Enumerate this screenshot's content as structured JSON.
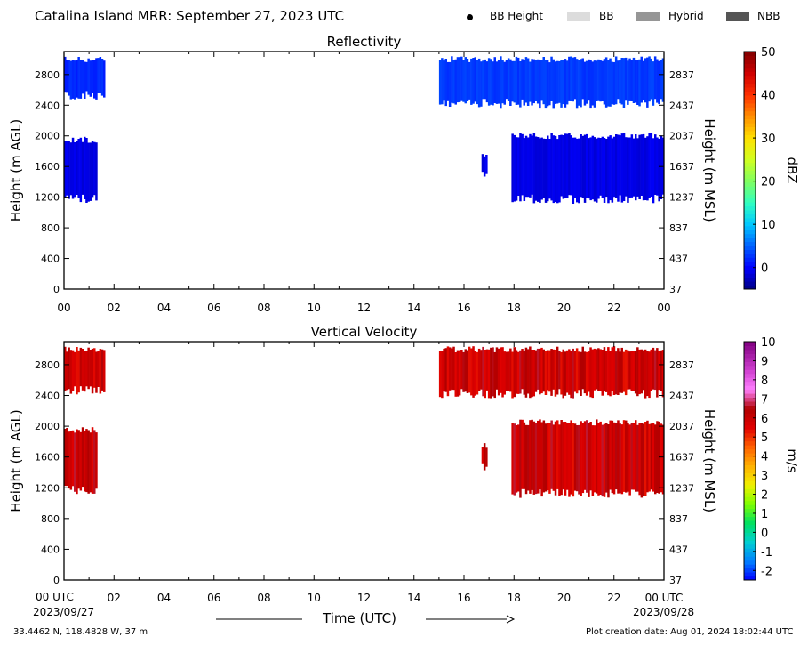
{
  "header": {
    "title": "Catalina Island MRR:  September 27, 2023 UTC",
    "legend": [
      {
        "label": "BB Height",
        "kind": "dot",
        "color": "#000000"
      },
      {
        "label": "BB",
        "kind": "box",
        "color": "#dcdcdc"
      },
      {
        "label": "Hybrid",
        "kind": "box",
        "color": "#969696"
      },
      {
        "label": "NBB",
        "kind": "box",
        "color": "#555555"
      }
    ]
  },
  "footer": {
    "start_time": "00 UTC",
    "start_date": "2023/09/27",
    "end_date": "2023/09/28",
    "xlabel": "Time (UTC)",
    "location": "33.4462 N, 118.4828 W, 37 m",
    "creation": "Plot creation date: Aug 01, 2024 18:02:44 UTC"
  },
  "chart_data": [
    {
      "type": "heatmap",
      "title": "Reflectivity",
      "ylabel": "Height (m AGL)",
      "ylabel_right": "Height (m MSL)",
      "colorbar_label": "dBZ",
      "x_ticks": [
        "00",
        "02",
        "04",
        "06",
        "08",
        "10",
        "12",
        "14",
        "16",
        "18",
        "20",
        "22",
        "00"
      ],
      "xlim_hours": [
        0,
        24
      ],
      "y_ticks": [
        0,
        400,
        800,
        1200,
        1600,
        2000,
        2400,
        2800
      ],
      "y_ticks_right": [
        37,
        437,
        837,
        1237,
        1637,
        2037,
        2437,
        2837
      ],
      "ylim": [
        0,
        3100
      ],
      "colorbar": {
        "range": [
          -5,
          50
        ],
        "ticks": [
          0,
          10,
          20,
          30,
          40,
          50
        ],
        "stops": [
          [
            -5,
            "#000080"
          ],
          [
            0,
            "#0000ff"
          ],
          [
            5,
            "#0060ff"
          ],
          [
            10,
            "#00c8ff"
          ],
          [
            15,
            "#30ffc0"
          ],
          [
            20,
            "#80ff60"
          ],
          [
            25,
            "#d0ff20"
          ],
          [
            30,
            "#ffe000"
          ],
          [
            35,
            "#ff9000"
          ],
          [
            40,
            "#ff3000"
          ],
          [
            45,
            "#d00000"
          ],
          [
            50,
            "#800000"
          ]
        ]
      },
      "regions": [
        {
          "x": [
            0.0,
            1.6
          ],
          "y": [
            2500,
            3000
          ],
          "value": 2
        },
        {
          "x": [
            0.0,
            1.3
          ],
          "y": [
            1150,
            1950
          ],
          "value": -1
        },
        {
          "x": [
            15.0,
            24.0
          ],
          "y": [
            2400,
            3000
          ],
          "value": 3
        },
        {
          "x": [
            16.7,
            16.9
          ],
          "y": [
            1450,
            1750
          ],
          "value": -1
        },
        {
          "x": [
            17.9,
            24.0
          ],
          "y": [
            1150,
            2000
          ],
          "value": -1
        }
      ]
    },
    {
      "type": "heatmap",
      "title": "Vertical Velocity",
      "ylabel": "Height (m AGL)",
      "ylabel_right": "Height (m MSL)",
      "colorbar_label": "m/s",
      "x_ticks": [
        "02",
        "04",
        "06",
        "08",
        "10",
        "12",
        "14",
        "16",
        "18",
        "20",
        "22"
      ],
      "xlim_hours": [
        0,
        24
      ],
      "y_ticks": [
        0,
        400,
        800,
        1200,
        1600,
        2000,
        2400,
        2800
      ],
      "y_ticks_right": [
        37,
        437,
        837,
        1237,
        1637,
        2037,
        2437,
        2837
      ],
      "ylim": [
        0,
        3100
      ],
      "colorbar": {
        "range": [
          -2.5,
          10
        ],
        "ticks": [
          -2,
          -1,
          0,
          1,
          2,
          3,
          4,
          5,
          6,
          7,
          8,
          9,
          10
        ],
        "stops": [
          [
            -2.5,
            "#0000ff"
          ],
          [
            -1.5,
            "#0080ff"
          ],
          [
            -0.5,
            "#00d0d0"
          ],
          [
            0.5,
            "#00e060"
          ],
          [
            1.5,
            "#80ff00"
          ],
          [
            2.5,
            "#f0f000"
          ],
          [
            3.5,
            "#ffb000"
          ],
          [
            4.5,
            "#ff6000"
          ],
          [
            5.5,
            "#e00000"
          ],
          [
            6.5,
            "#b00000"
          ],
          [
            7.5,
            "#ff80ff"
          ],
          [
            8.5,
            "#d040d0"
          ],
          [
            10,
            "#800080"
          ]
        ]
      },
      "regions": [
        {
          "x": [
            0.0,
            1.6
          ],
          "y": [
            2450,
            3000
          ],
          "value": 6
        },
        {
          "x": [
            0.0,
            1.3
          ],
          "y": [
            1150,
            1950
          ],
          "value": 6
        },
        {
          "x": [
            15.0,
            24.0
          ],
          "y": [
            2400,
            3000
          ],
          "value": 6
        },
        {
          "x": [
            16.7,
            16.9
          ],
          "y": [
            1450,
            1750
          ],
          "value": 6
        },
        {
          "x": [
            17.9,
            24.0
          ],
          "y": [
            1100,
            2050
          ],
          "value": 6
        }
      ]
    }
  ]
}
